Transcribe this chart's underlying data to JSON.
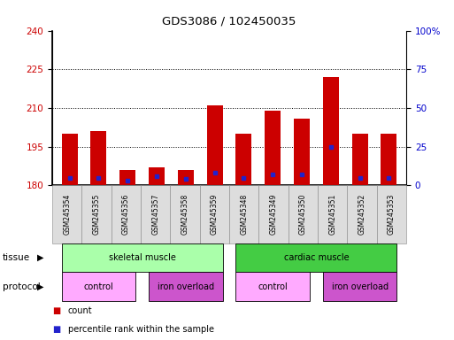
{
  "title": "GDS3086 / 102450035",
  "samples": [
    "GSM245354",
    "GSM245355",
    "GSM245356",
    "GSM245357",
    "GSM245358",
    "GSM245359",
    "GSM245348",
    "GSM245349",
    "GSM245350",
    "GSM245351",
    "GSM245352",
    "GSM245353"
  ],
  "count_values": [
    200,
    201,
    186,
    187,
    186,
    211,
    200,
    209,
    206,
    222,
    200,
    200
  ],
  "percentile_values": [
    5,
    5,
    3,
    6,
    4,
    8,
    5,
    7,
    7,
    25,
    5,
    5
  ],
  "base_value": 180,
  "ylim_left": [
    180,
    240
  ],
  "ylim_right": [
    0,
    100
  ],
  "yticks_left": [
    180,
    195,
    210,
    225,
    240
  ],
  "yticks_right": [
    0,
    25,
    50,
    75,
    100
  ],
  "bar_color": "#cc0000",
  "percentile_color": "#2222cc",
  "bar_width": 0.55,
  "tissue_groups": [
    {
      "label": "skeletal muscle",
      "start": 0,
      "end": 5,
      "color": "#aaffaa"
    },
    {
      "label": "cardiac muscle",
      "start": 6,
      "end": 11,
      "color": "#44cc44"
    }
  ],
  "protocol_groups": [
    {
      "label": "control",
      "start": 0,
      "end": 2,
      "color": "#ffaaff"
    },
    {
      "label": "iron overload",
      "start": 3,
      "end": 5,
      "color": "#cc55cc"
    },
    {
      "label": "control",
      "start": 6,
      "end": 8,
      "color": "#ffaaff"
    },
    {
      "label": "iron overload",
      "start": 9,
      "end": 11,
      "color": "#cc55cc"
    }
  ],
  "legend_count_label": "count",
  "legend_percentile_label": "percentile rank within the sample",
  "tissue_label": "tissue",
  "protocol_label": "protocol",
  "background_color": "#ffffff",
  "plot_bg_color": "#ffffff",
  "left_axis_color": "#cc0000",
  "right_axis_color": "#0000cc",
  "sample_label_bg": "#dddddd"
}
